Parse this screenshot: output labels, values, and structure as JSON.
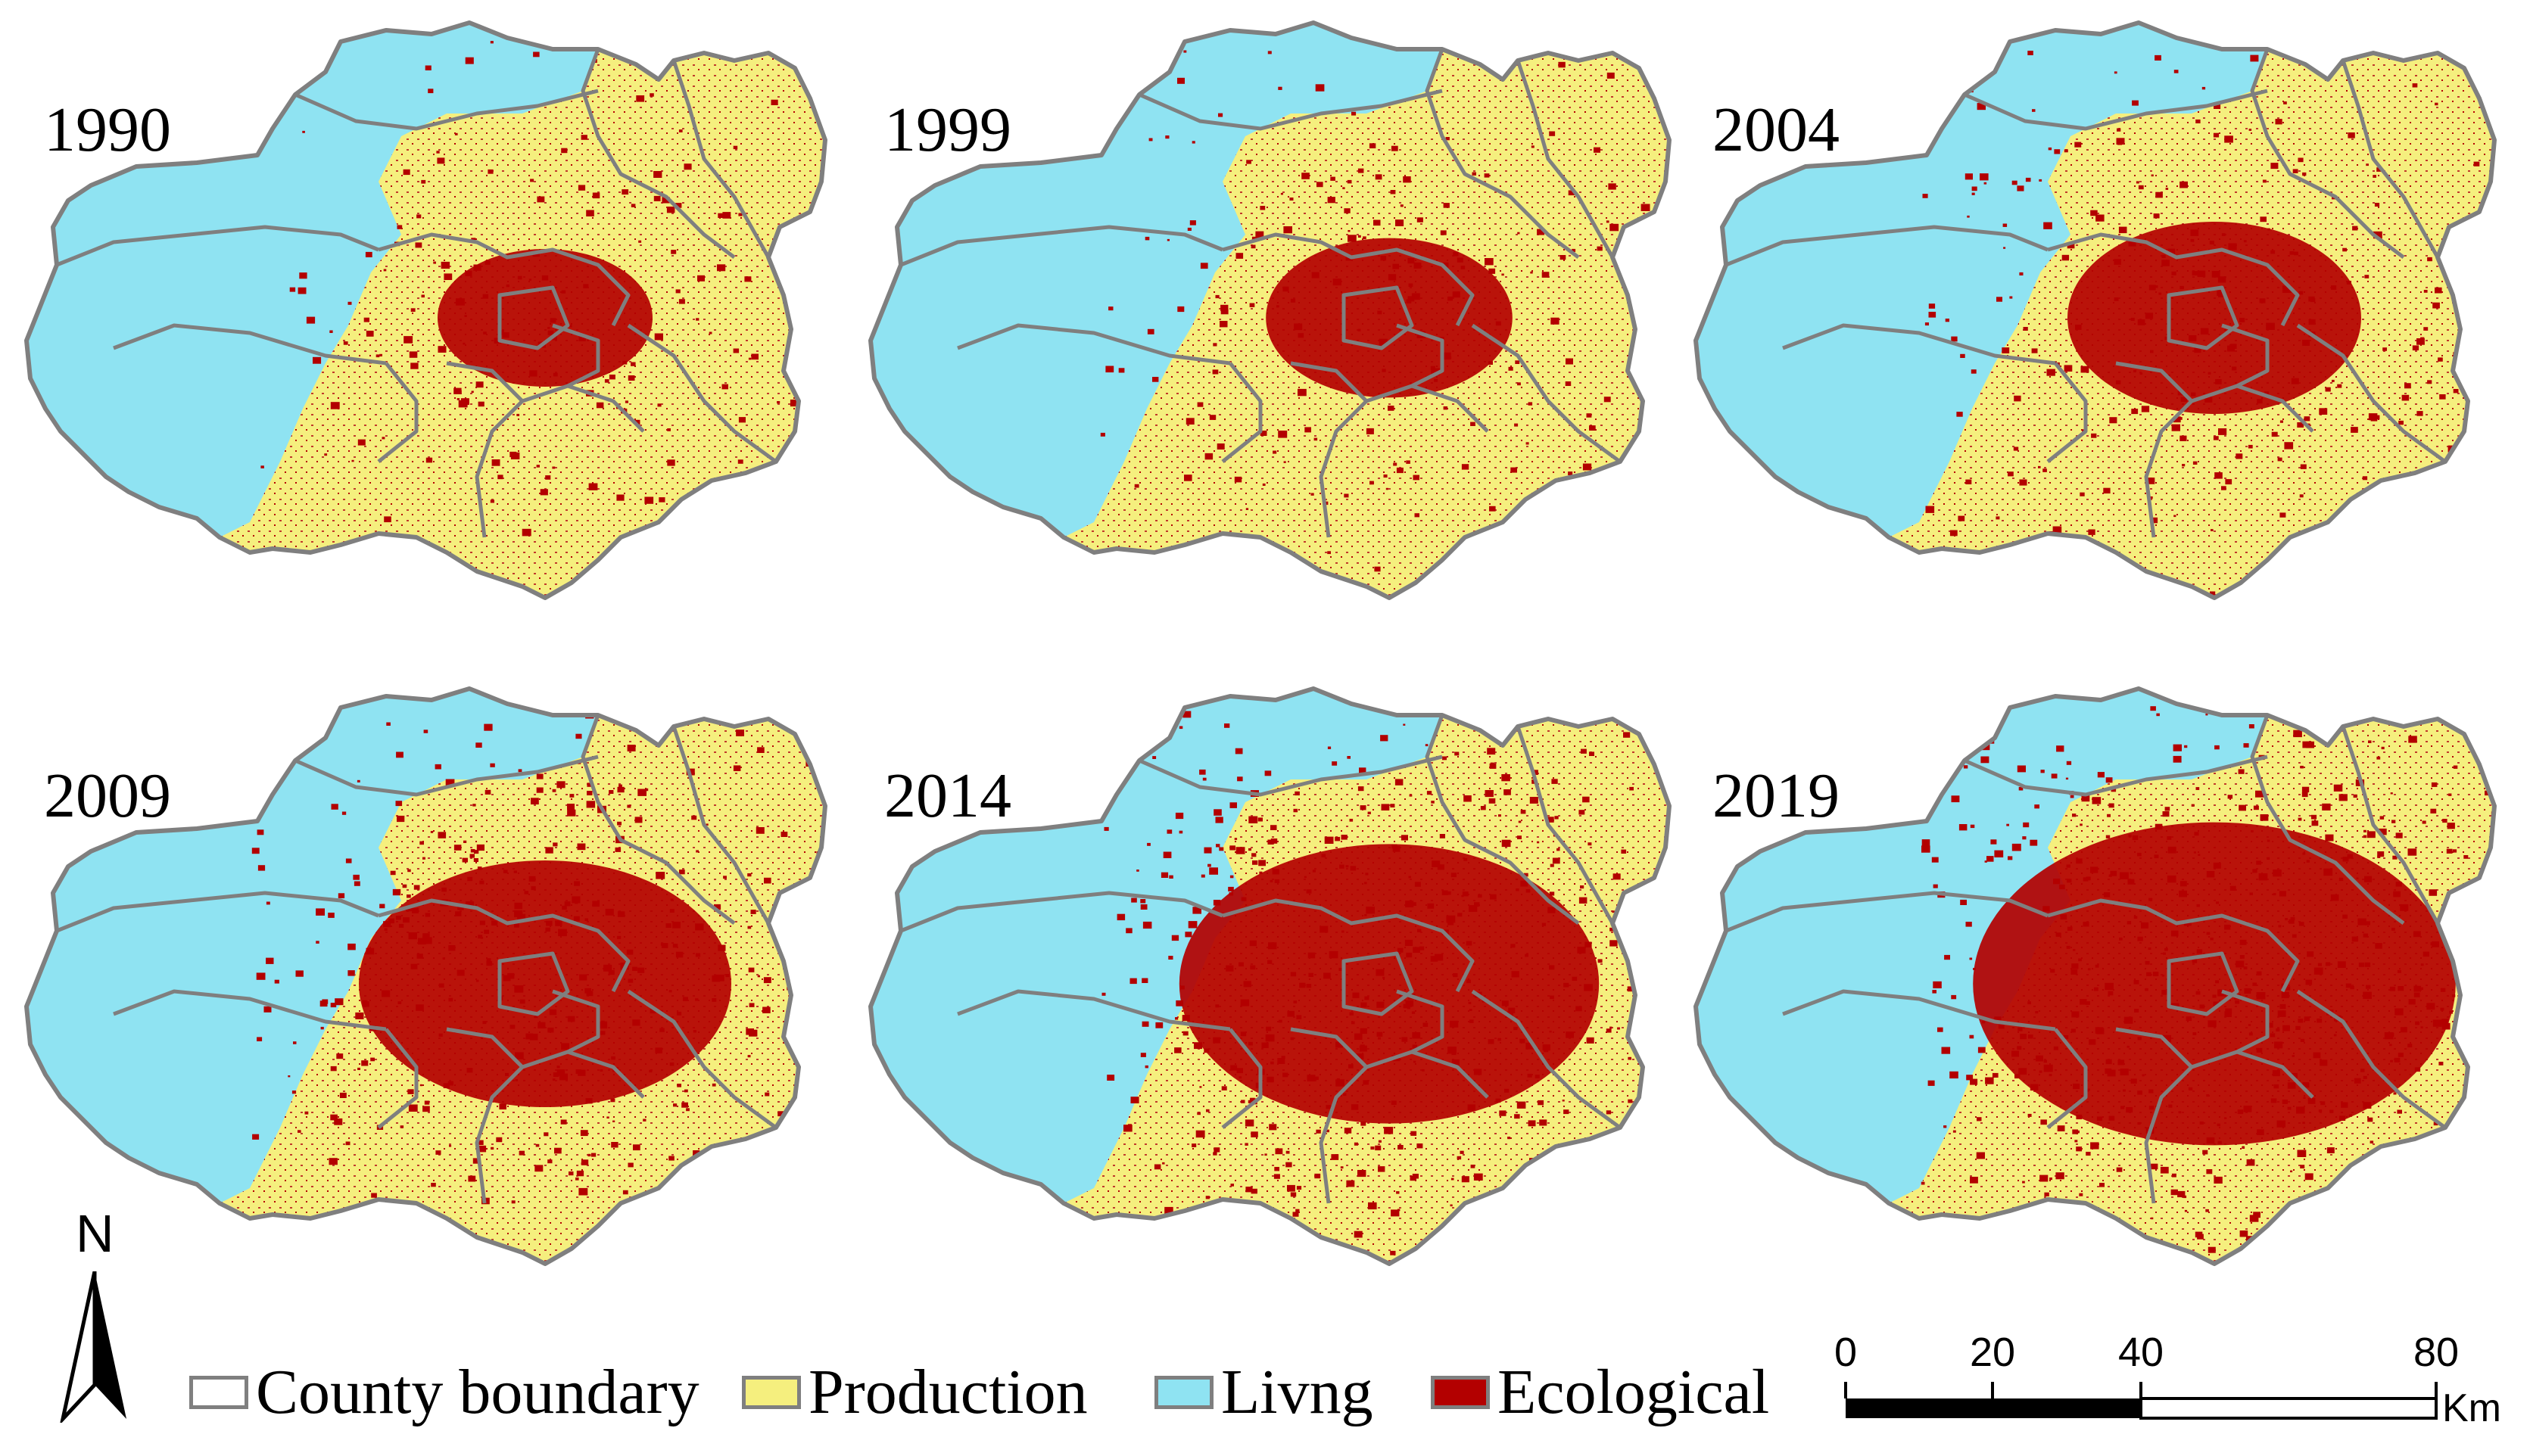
{
  "figure": {
    "panels": [
      {
        "year": "1990",
        "ecological_share": 0.1
      },
      {
        "year": "1999",
        "ecological_share": 0.14
      },
      {
        "year": "2004",
        "ecological_share": 0.2
      },
      {
        "year": "2009",
        "ecological_share": 0.3
      },
      {
        "year": "2014",
        "ecological_share": 0.36
      },
      {
        "year": "2019",
        "ecological_share": 0.44
      }
    ]
  },
  "legend": {
    "items": [
      {
        "label": "County boundary",
        "color": "#ffffff",
        "border": "#7f7f7f"
      },
      {
        "label": "Production",
        "color": "#f5ef7e",
        "border": "#7f7f7f"
      },
      {
        "label": "Livng",
        "color": "#8fe3f2",
        "border": "#7f7f7f"
      },
      {
        "label": "Ecological",
        "color": "#b30000",
        "border": "#7f7f7f"
      }
    ]
  },
  "north_arrow": {
    "label": "N"
  },
  "scale_bar": {
    "ticks": [
      "0",
      "20",
      "40",
      "80"
    ],
    "tick_values": [
      0,
      20,
      40,
      80
    ],
    "unit": "Km"
  },
  "colors": {
    "production": "#f5ef7e",
    "living": "#8fe3f2",
    "ecological": "#b30000",
    "boundary": "#7f7f7f"
  }
}
